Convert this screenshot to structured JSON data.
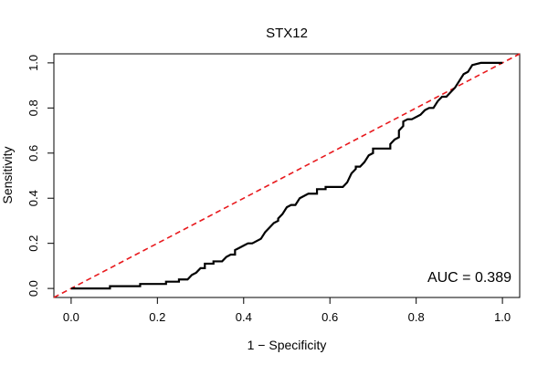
{
  "chart_data": {
    "type": "line",
    "title": "STX12",
    "xlabel": "1 − Specificity",
    "ylabel": "Sensitivity",
    "xlim": [
      -0.04,
      1.04
    ],
    "ylim": [
      -0.04,
      1.04
    ],
    "xticks": [
      0.0,
      0.2,
      0.4,
      0.6,
      0.8,
      1.0
    ],
    "xtick_labels": [
      "0.0",
      "0.2",
      "0.4",
      "0.6",
      "0.8",
      "1.0"
    ],
    "yticks": [
      0.0,
      0.2,
      0.4,
      0.6,
      0.8,
      1.0
    ],
    "ytick_labels": [
      "0.0",
      "0.2",
      "0.4",
      "0.6",
      "0.8",
      "1.0"
    ],
    "grid": false,
    "annotation": "AUC = 0.389",
    "colors": {
      "roc": "#000000",
      "reference": "#e8191d",
      "frame": "#000000"
    },
    "series": [
      {
        "name": "ROC curve",
        "style": "solid",
        "x": [
          0.0,
          0.09,
          0.09,
          0.16,
          0.16,
          0.22,
          0.22,
          0.25,
          0.25,
          0.27,
          0.28,
          0.29,
          0.3,
          0.31,
          0.31,
          0.33,
          0.33,
          0.35,
          0.36,
          0.37,
          0.38,
          0.38,
          0.39,
          0.4,
          0.41,
          0.42,
          0.43,
          0.44,
          0.45,
          0.46,
          0.47,
          0.48,
          0.48,
          0.49,
          0.5,
          0.51,
          0.52,
          0.53,
          0.55,
          0.57,
          0.57,
          0.59,
          0.59,
          0.63,
          0.64,
          0.65,
          0.66,
          0.66,
          0.67,
          0.68,
          0.69,
          0.7,
          0.7,
          0.74,
          0.74,
          0.75,
          0.76,
          0.76,
          0.77,
          0.77,
          0.78,
          0.79,
          0.81,
          0.82,
          0.83,
          0.84,
          0.85,
          0.86,
          0.87,
          0.88,
          0.89,
          0.9,
          0.91,
          0.92,
          0.93,
          0.95,
          1.0
        ],
        "y": [
          0.0,
          0.0,
          0.01,
          0.01,
          0.02,
          0.02,
          0.03,
          0.03,
          0.04,
          0.04,
          0.06,
          0.07,
          0.09,
          0.09,
          0.11,
          0.11,
          0.12,
          0.12,
          0.14,
          0.15,
          0.15,
          0.17,
          0.18,
          0.19,
          0.2,
          0.2,
          0.21,
          0.22,
          0.25,
          0.27,
          0.29,
          0.3,
          0.31,
          0.33,
          0.36,
          0.37,
          0.37,
          0.4,
          0.42,
          0.42,
          0.44,
          0.44,
          0.45,
          0.45,
          0.47,
          0.51,
          0.53,
          0.54,
          0.54,
          0.56,
          0.59,
          0.6,
          0.62,
          0.62,
          0.64,
          0.66,
          0.67,
          0.7,
          0.72,
          0.74,
          0.75,
          0.75,
          0.77,
          0.79,
          0.8,
          0.8,
          0.83,
          0.85,
          0.85,
          0.87,
          0.89,
          0.92,
          0.95,
          0.96,
          0.99,
          1.0,
          1.0
        ]
      },
      {
        "name": "Reference line",
        "style": "dashed",
        "x": [
          -0.04,
          1.04
        ],
        "y": [
          -0.04,
          1.04
        ]
      }
    ]
  }
}
